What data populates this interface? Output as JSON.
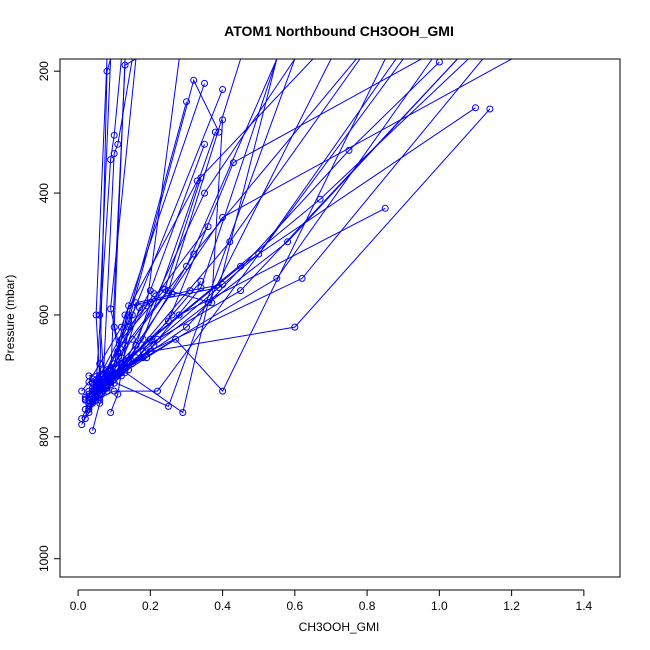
{
  "chart_data": {
    "type": "line",
    "title": "ATOM1 Northbound CH3OOH_GMI",
    "xlabel": "CH3OOH_GMI",
    "ylabel": "Pressure (mbar)",
    "xlim": [
      -0.05,
      1.5
    ],
    "ylim": [
      1030,
      180
    ],
    "y_reversed": true,
    "x_ticks": [
      0.0,
      0.2,
      0.4,
      0.6,
      0.8,
      1.0,
      1.2,
      1.4
    ],
    "x_tick_labels": [
      "0.0",
      "0.2",
      "0.4",
      "0.6",
      "0.8",
      "1.0",
      "1.2",
      "1.4"
    ],
    "y_ticks": [
      200,
      400,
      600,
      800,
      1000
    ],
    "y_tick_labels": [
      "200",
      "400",
      "600",
      "800",
      "1000"
    ],
    "grid": false,
    "line_color": "#0000ff",
    "marker": "open-circle",
    "series": [
      {
        "x": [
          0.01,
          0.04,
          0.07,
          0.11,
          0.2,
          0.35
        ],
        "y": [
          780,
          740,
          700,
          660,
          560,
          320
        ]
      },
      {
        "x": [
          0.02,
          0.05,
          0.09,
          0.13,
          0.3,
          0.55
        ],
        "y": [
          740,
          720,
          690,
          650,
          520,
          180
        ]
      },
      {
        "x": [
          0.01,
          0.03,
          0.06,
          0.12,
          0.35
        ],
        "y": [
          725,
          710,
          680,
          620,
          220
        ]
      },
      {
        "x": [
          0.03,
          0.05,
          0.08,
          0.15,
          0.4
        ],
        "y": [
          760,
          730,
          695,
          600,
          230
        ]
      },
      {
        "x": [
          0.04,
          0.06,
          0.1,
          0.18,
          0.38
        ],
        "y": [
          790,
          745,
          700,
          640,
          300
        ]
      },
      {
        "x": [
          0.02,
          0.05,
          0.09,
          0.3,
          0.75,
          1.0
        ],
        "y": [
          770,
          740,
          705,
          620,
          330,
          185
        ]
      },
      {
        "x": [
          0.03,
          0.07,
          0.12,
          0.28,
          0.85
        ],
        "y": [
          750,
          720,
          680,
          600,
          425
        ]
      },
      {
        "x": [
          0.05,
          0.08,
          0.14,
          0.45,
          1.1
        ],
        "y": [
          735,
          710,
          670,
          520,
          260
        ]
      },
      {
        "x": [
          0.04,
          0.09,
          0.2,
          0.6,
          1.14
        ],
        "y": [
          745,
          700,
          660,
          620,
          262
        ]
      },
      {
        "x": [
          0.02,
          0.06,
          0.16,
          0.4,
          1.2
        ],
        "y": [
          755,
          715,
          650,
          440,
          180
        ]
      },
      {
        "x": [
          0.03,
          0.08,
          0.22,
          0.45,
          1.05
        ],
        "y": [
          700,
          690,
          640,
          560,
          180
        ]
      },
      {
        "x": [
          0.05,
          0.1,
          0.25,
          0.43,
          0.95
        ],
        "y": [
          720,
          695,
          610,
          350,
          180
        ]
      },
      {
        "x": [
          0.04,
          0.1,
          0.15,
          0.25,
          0.45
        ],
        "y": [
          705,
          680,
          640,
          560,
          180
        ]
      },
      {
        "x": [
          0.06,
          0.09,
          0.13,
          0.33,
          0.65
        ],
        "y": [
          740,
          710,
          600,
          380,
          180
        ]
      },
      {
        "x": [
          0.09,
          0.11,
          0.14,
          0.19,
          0.28
        ],
        "y": [
          760,
          730,
          620,
          585,
          180
        ]
      },
      {
        "x": [
          0.03,
          0.07,
          0.12,
          0.32,
          0.77
        ],
        "y": [
          730,
          715,
          695,
          500,
          180
        ]
      },
      {
        "x": [
          0.05,
          0.11,
          0.27,
          0.4,
          0.85
        ],
        "y": [
          715,
          700,
          640,
          725,
          180
        ]
      },
      {
        "x": [
          0.02,
          0.04,
          0.08,
          0.25,
          0.6
        ],
        "y": [
          738,
          725,
          705,
          750,
          180
        ]
      },
      {
        "x": [
          0.06,
          0.12,
          0.29,
          0.36,
          0.7
        ],
        "y": [
          710,
          690,
          760,
          580,
          180
        ]
      },
      {
        "x": [
          0.01,
          0.03,
          0.1,
          0.22,
          0.9
        ],
        "y": [
          770,
          745,
          725,
          725,
          180
        ]
      },
      {
        "x": [
          0.04,
          0.08,
          0.18,
          0.34,
          0.55
        ],
        "y": [
          712,
          698,
          670,
          555,
          180
        ]
      },
      {
        "x": [
          0.03,
          0.06,
          0.14,
          0.32,
          0.39
        ],
        "y": [
          725,
          700,
          610,
          215,
          300
        ]
      },
      {
        "x": [
          0.02,
          0.05,
          0.09,
          0.1,
          0.12
        ],
        "y": [
          735,
          715,
          345,
          305,
          180
        ]
      },
      {
        "x": [
          0.04,
          0.07,
          0.1,
          0.11,
          0.15
        ],
        "y": [
          720,
          700,
          335,
          320,
          180
        ]
      },
      {
        "x": [
          0.03,
          0.06,
          0.08,
          0.09
        ],
        "y": [
          740,
          710,
          200,
          180
        ]
      },
      {
        "x": [
          0.04,
          0.09,
          0.13,
          0.16
        ],
        "y": [
          730,
          700,
          190,
          180
        ]
      },
      {
        "x": [
          0.03,
          0.06,
          0.05,
          0.08
        ],
        "y": [
          745,
          705,
          600,
          180
        ]
      },
      {
        "x": [
          0.05,
          0.12,
          0.1,
          0.13
        ],
        "y": [
          725,
          700,
          620,
          180
        ]
      },
      {
        "x": [
          0.04,
          0.07,
          0.06,
          0.09
        ],
        "y": [
          710,
          690,
          600,
          180
        ]
      },
      {
        "x": [
          0.06,
          0.13,
          0.09,
          0.16
        ],
        "y": [
          720,
          695,
          590,
          180
        ]
      },
      {
        "x": [
          0.08,
          0.15,
          0.26,
          0.34
        ],
        "y": [
          700,
          680,
          600,
          545
        ]
      },
      {
        "x": [
          0.07,
          0.12,
          0.16,
          0.31,
          0.4
        ],
        "y": [
          705,
          670,
          580,
          560,
          550
        ]
      },
      {
        "x": [
          0.05,
          0.11,
          0.21,
          0.24,
          0.34
        ],
        "y": [
          720,
          660,
          565,
          558,
          375
        ]
      },
      {
        "x": [
          0.06,
          0.14,
          0.16,
          0.2,
          0.36
        ],
        "y": [
          715,
          690,
          650,
          580,
          455
        ]
      },
      {
        "x": [
          0.07,
          0.12,
          0.24,
          0.37,
          0.4
        ],
        "y": [
          700,
          640,
          558,
          580,
          280
        ]
      },
      {
        "x": [
          0.04,
          0.1,
          0.14,
          0.39,
          0.55
        ],
        "y": [
          730,
          695,
          585,
          555,
          180
        ]
      },
      {
        "x": [
          0.04,
          0.09,
          0.12,
          0.19
        ],
        "y": [
          712,
          700,
          685,
          670
        ]
      },
      {
        "x": [
          0.05,
          0.11,
          0.17,
          0.26
        ],
        "y": [
          715,
          700,
          588,
          565
        ]
      },
      {
        "x": [
          0.06,
          0.08,
          0.1,
          0.2
        ],
        "y": [
          728,
          700,
          695,
          660
        ]
      },
      {
        "x": [
          0.03,
          0.06,
          0.09,
          0.14,
          0.3
        ],
        "y": [
          740,
          720,
          700,
          600,
          250
        ]
      },
      {
        "x": [
          0.05,
          0.09,
          0.13,
          0.35,
          0.6
        ],
        "y": [
          730,
          715,
          680,
          400,
          180
        ]
      },
      {
        "x": [
          0.04,
          0.08,
          0.12,
          0.42,
          0.78
        ],
        "y": [
          745,
          725,
          690,
          480,
          180
        ]
      },
      {
        "x": [
          0.05,
          0.1,
          0.18,
          0.5,
          0.88
        ],
        "y": [
          735,
          712,
          660,
          500,
          180
        ]
      },
      {
        "x": [
          0.03,
          0.06,
          0.1,
          0.55,
          0.98
        ],
        "y": [
          755,
          730,
          700,
          540,
          180
        ]
      },
      {
        "x": [
          0.06,
          0.11,
          0.21,
          0.58,
          1.05
        ],
        "y": [
          720,
          700,
          650,
          480,
          180
        ]
      },
      {
        "x": [
          0.04,
          0.08,
          0.16,
          0.62,
          1.12
        ],
        "y": [
          742,
          720,
          670,
          540,
          180
        ]
      },
      {
        "x": [
          0.05,
          0.09,
          0.2,
          0.67,
          1.08
        ],
        "y": [
          728,
          705,
          640,
          410,
          180
        ]
      }
    ]
  }
}
